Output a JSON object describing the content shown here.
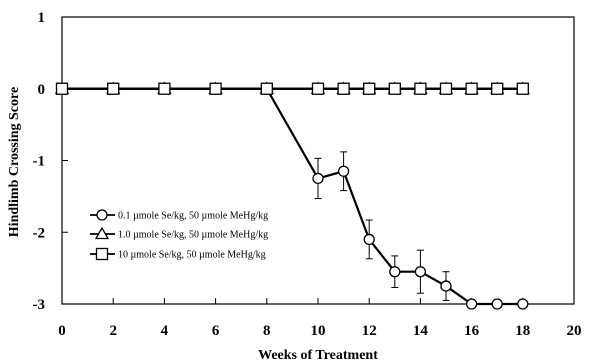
{
  "chart_data": {
    "type": "line",
    "title": "",
    "xlabel": "Weeks of Treatment",
    "ylabel": "Hindlimb Crossing Score",
    "xlim": [
      0,
      20
    ],
    "ylim": [
      -3,
      1
    ],
    "x_ticks": [
      0,
      2,
      4,
      6,
      8,
      10,
      12,
      14,
      16,
      18,
      20
    ],
    "y_ticks": [
      1,
      0,
      -1,
      -2,
      -3
    ],
    "grid": false,
    "legend_position": "left",
    "series": [
      {
        "name": "0.1 µmole Se/kg, 50 µmole MeHg/kg",
        "marker": "circle",
        "x": [
          0,
          2,
          4,
          6,
          8,
          10,
          11,
          12,
          13,
          14,
          15,
          16,
          17,
          18
        ],
        "y": [
          0,
          0,
          0,
          0,
          0,
          -1.25,
          -1.15,
          -2.1,
          -2.55,
          -2.55,
          -2.75,
          -3,
          -3,
          -3
        ],
        "error": [
          0,
          0,
          0,
          0,
          0,
          0.28,
          0.27,
          0.27,
          0.22,
          0.3,
          0.2,
          0,
          0,
          0
        ]
      },
      {
        "name": "1.0 µmole Se/kg, 50 µmole MeHg/kg",
        "marker": "triangle",
        "x": [
          0,
          2,
          4,
          6,
          8,
          10,
          11,
          12,
          13,
          14,
          15,
          16,
          17,
          18
        ],
        "y": [
          0,
          0,
          0,
          0,
          0,
          0,
          0,
          0,
          0,
          0,
          0,
          0,
          0,
          0
        ]
      },
      {
        "name": "10 µmole Se/kg, 50 µmole MeHg/kg",
        "marker": "square",
        "x": [
          0,
          2,
          4,
          6,
          8,
          10,
          11,
          12,
          13,
          14,
          15,
          16,
          17,
          18
        ],
        "y": [
          0,
          0,
          0,
          0,
          0,
          0,
          0,
          0,
          0,
          0,
          0,
          0,
          0,
          0
        ]
      }
    ]
  }
}
